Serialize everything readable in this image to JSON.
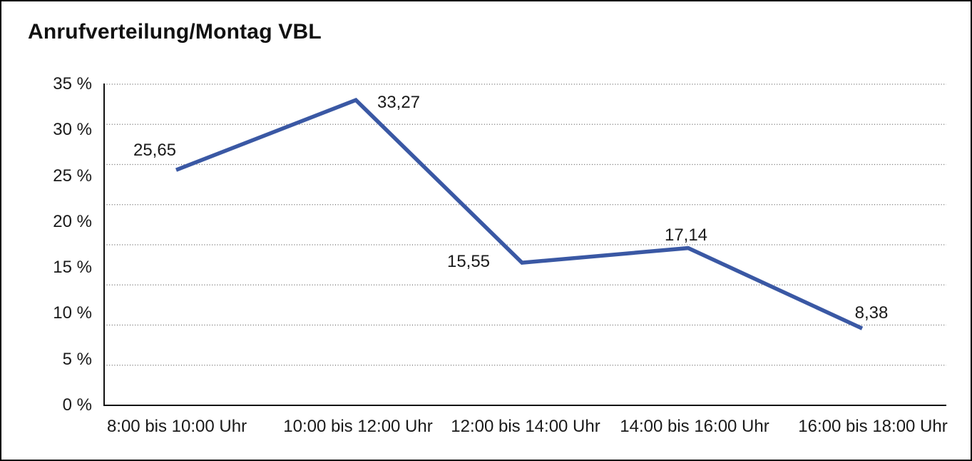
{
  "chart_data": {
    "type": "line",
    "title": "Anrufverteilung/Montag VBL",
    "categories": [
      "8:00 bis 10:00 Uhr",
      "10:00 bis 12:00 Uhr",
      "12:00 bis 14:00 Uhr",
      "14:00 bis 16:00 Uhr",
      "16:00 bis 18:00 Uhr"
    ],
    "series": [
      {
        "name": "Anrufverteilung Montag VBL",
        "values": [
          25.65,
          33.27,
          15.55,
          17.14,
          8.38
        ]
      }
    ],
    "value_labels": [
      "25,65",
      "33,27",
      "15,55",
      "17,14",
      "8,38"
    ],
    "xlabel": "",
    "ylabel": "",
    "ylim": [
      0,
      35
    ],
    "y_ticks": [
      {
        "value": 35,
        "label": "35 %"
      },
      {
        "value": 30,
        "label": "30 %"
      },
      {
        "value": 25,
        "label": "25 %"
      },
      {
        "value": 20,
        "label": "20 %"
      },
      {
        "value": 15,
        "label": "15 %"
      },
      {
        "value": 10,
        "label": "10 %"
      },
      {
        "value": 5,
        "label": "5 %"
      },
      {
        "value": 0,
        "label": "0 %"
      }
    ],
    "grid": {
      "horizontal": "dotted",
      "intervals": 8,
      "vertical": "none"
    },
    "legend": "none",
    "colors": {
      "line": "#3A58A4",
      "grid_dots": "#666666",
      "axis": "#111111",
      "text": "#1a1a1a",
      "background": "#FFFFFF",
      "border": "#000000"
    }
  }
}
